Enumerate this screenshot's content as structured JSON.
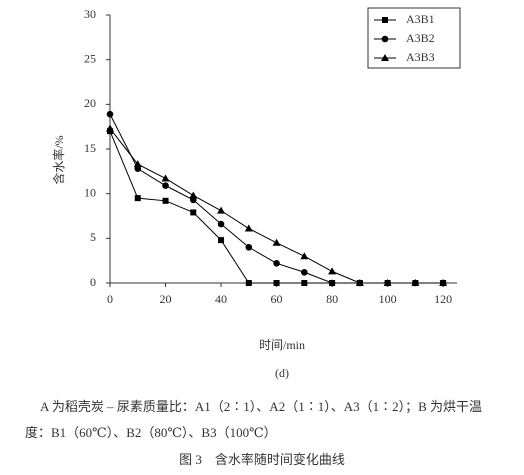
{
  "chart_data": {
    "type": "line",
    "subtitle": "(d)",
    "x_label": "时间/min",
    "y_label": "含水率/%",
    "x": [
      0,
      10,
      20,
      30,
      40,
      50,
      60,
      70,
      80,
      90,
      100,
      110,
      120
    ],
    "series": [
      {
        "name": "A3B1",
        "color": "#000000",
        "marker": "square",
        "values": [
          17.0,
          9.5,
          9.2,
          7.9,
          4.8,
          0,
          0,
          0,
          0,
          0,
          0,
          0,
          0
        ]
      },
      {
        "name": "A3B2",
        "color": "#000000",
        "marker": "circle",
        "values": [
          18.9,
          12.8,
          10.9,
          9.3,
          6.6,
          4.0,
          2.2,
          1.2,
          0,
          0,
          0,
          0,
          0
        ]
      },
      {
        "name": "A3B3",
        "color": "#000000",
        "marker": "triangle",
        "values": [
          17.3,
          13.3,
          11.7,
          9.8,
          8.1,
          6.1,
          4.5,
          3.0,
          1.3,
          0,
          0,
          0,
          0
        ]
      }
    ],
    "xlim": [
      0,
      125
    ],
    "xticks": [
      0,
      20,
      40,
      60,
      80,
      100,
      120
    ],
    "ylim": [
      0,
      30
    ],
    "yticks": [
      0,
      5,
      10,
      15,
      20,
      25,
      30
    ],
    "grid": false,
    "legend": "upper right"
  },
  "note": [
    "A 为稻壳炭 – 尿素质量比：A1（2∶1）、A2（1∶1）、A3（1∶2）；B 为烘干温",
    "度：B1（60℃）、B2（80℃）、B3（100℃）"
  ],
  "figure_caption": "图 3　含水率随时间变化曲线"
}
